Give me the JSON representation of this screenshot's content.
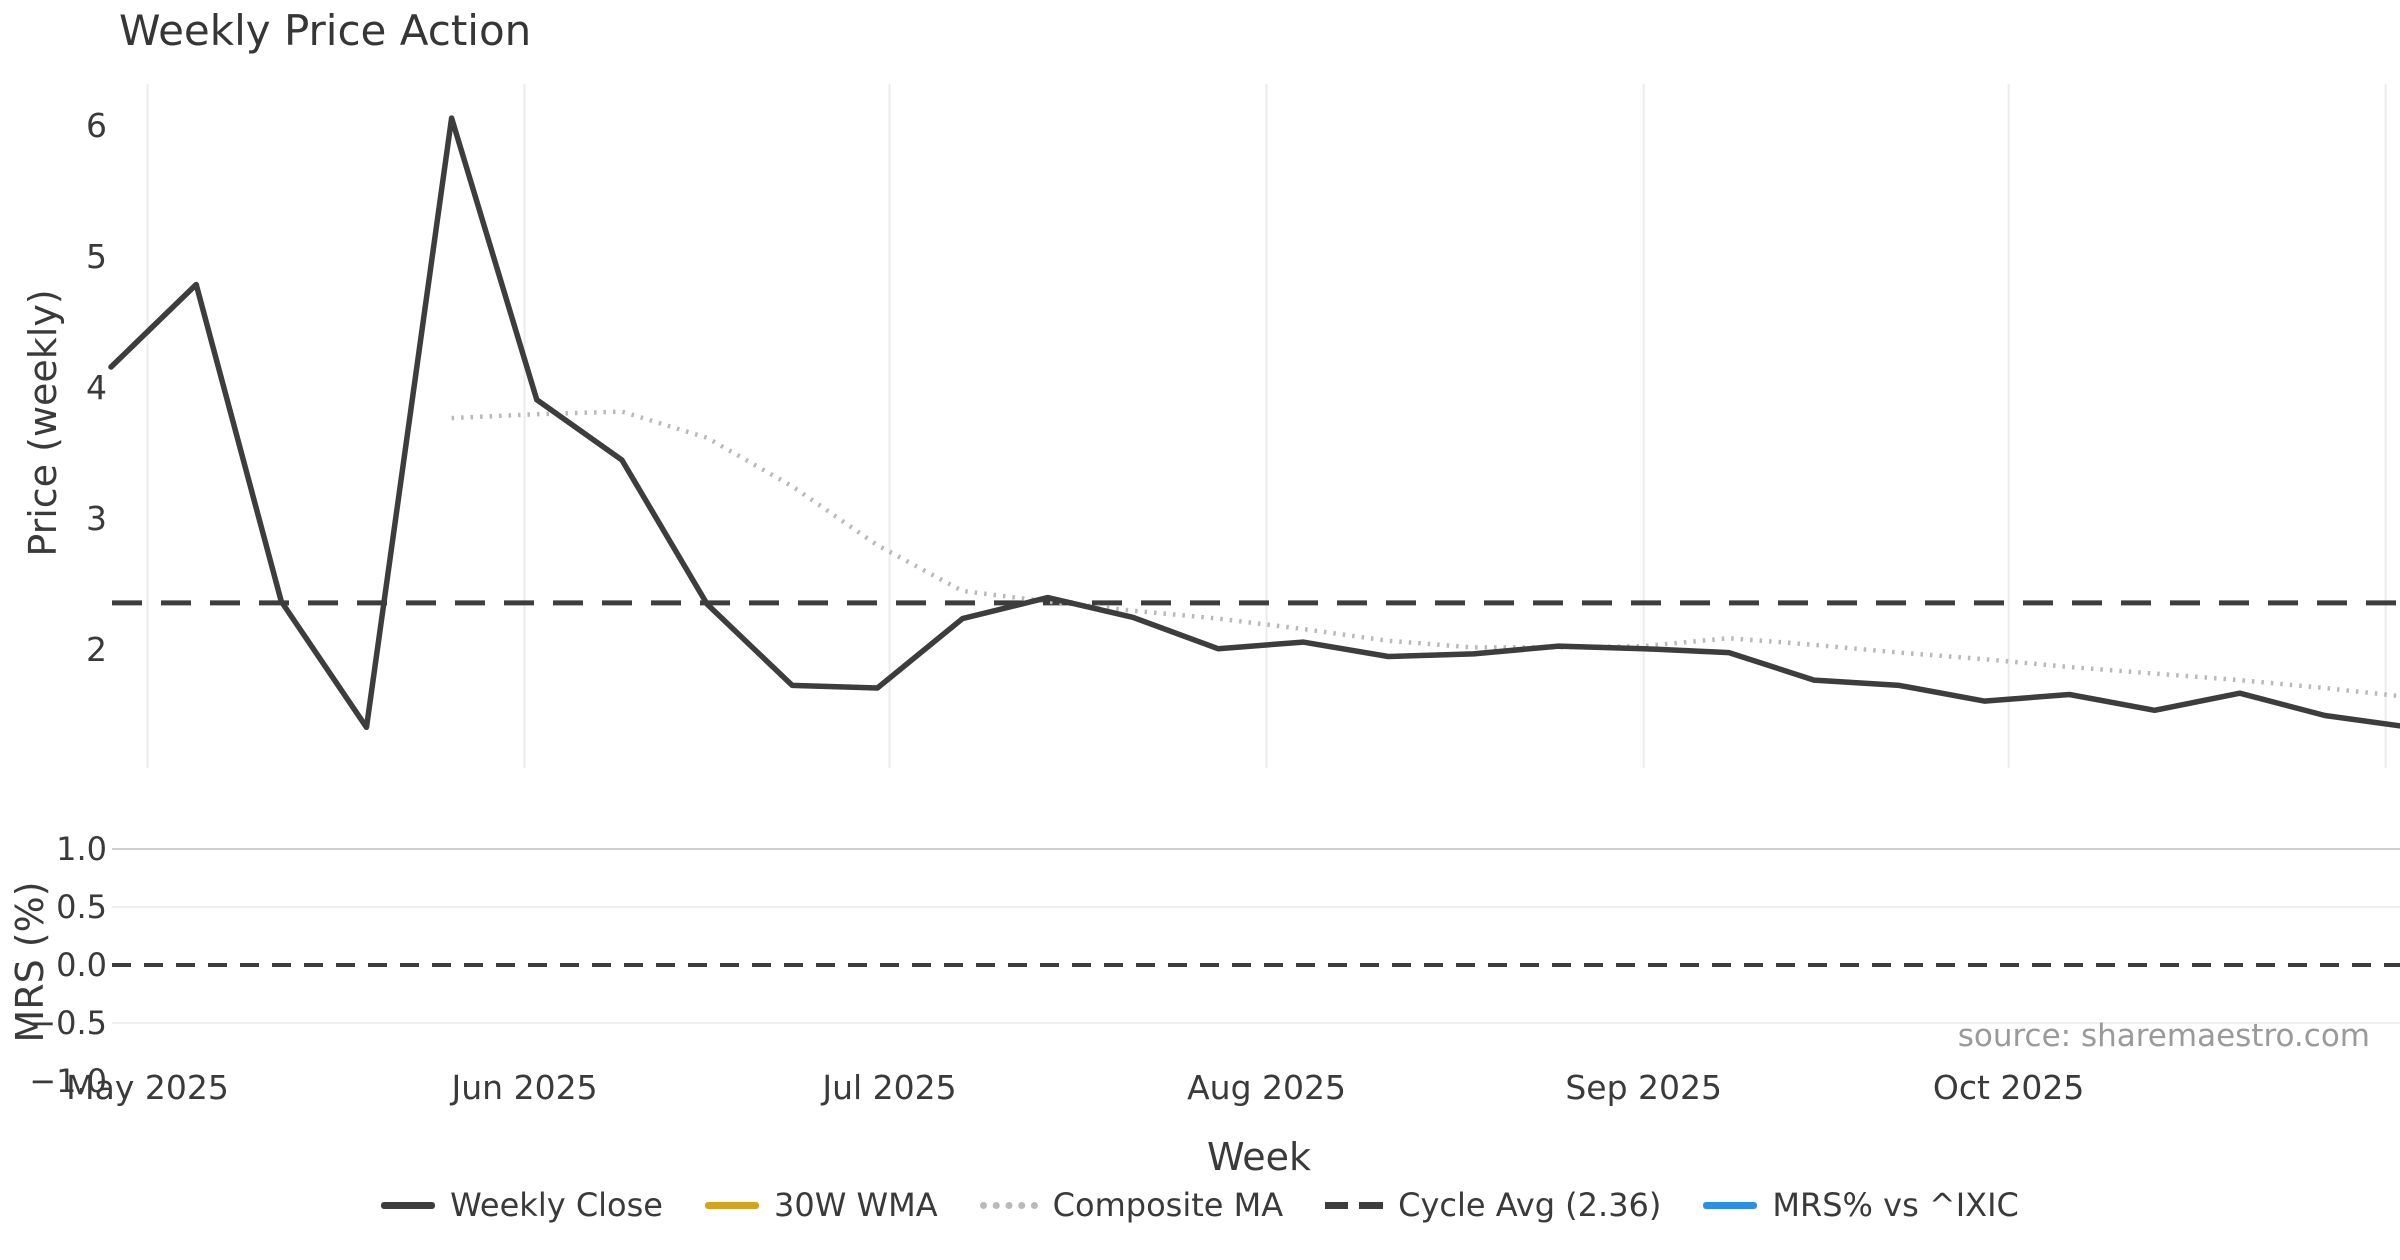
{
  "title": "Weekly Price Action",
  "xlabel": "Week",
  "source_note": "source: sharemaestro.com",
  "x_tick_labels": [
    "May 2025",
    "Jun 2025",
    "Jul 2025",
    "Aug 2025",
    "Sep 2025",
    "Oct 2025"
  ],
  "price_panel": {
    "ylabel": "Price (weekly)",
    "ytick_labels": [
      "6",
      "5",
      "4",
      "3",
      "2"
    ],
    "ytick_values": [
      6,
      5,
      4,
      3,
      2
    ]
  },
  "mrs_panel": {
    "ylabel": "MRS (%)",
    "ytick_labels": [
      "1.0",
      "0.5",
      "0.0",
      "−0.5",
      "−1.0"
    ],
    "ytick_values": [
      1.0,
      0.5,
      0.0,
      -0.5,
      -1.0
    ]
  },
  "colors": {
    "line_dark": "#3d3d3d",
    "composite_gray": "#b9b9b9",
    "wma_gold": "#d2a41f",
    "mrs_blue": "#2b8fe8",
    "grid_light": "#ececec",
    "grid_medium": "#cfcfcf",
    "text_dark": "#3a3a3a",
    "source_gray": "#9a9a9a"
  },
  "legend": [
    {
      "label": "Weekly Close",
      "color": "#3d3d3d",
      "style": "solid"
    },
    {
      "label": "30W WMA",
      "color": "#d2a41f",
      "style": "solid"
    },
    {
      "label": "Composite MA",
      "color": "#b9b9b9",
      "style": "dotted"
    },
    {
      "label": "Cycle Avg (2.36)",
      "color": "#3d3d3d",
      "style": "dashed"
    },
    {
      "label": "MRS% vs ^IXIC",
      "color": "#2b8fe8",
      "style": "solid"
    }
  ],
  "chart_data": [
    {
      "type": "line",
      "panel": "price",
      "title": "Weekly Price Action",
      "xlabel": "Week",
      "ylabel": "Price (weekly)",
      "x_unit": "weekly points, late Apr 2025 through early Nov 2025",
      "x_tick_labels": [
        "May 2025",
        "Jun 2025",
        "Jul 2025",
        "Aug 2025",
        "Sep 2025",
        "Oct 2025"
      ],
      "ylim": [
        1.2,
        6.3
      ],
      "yticks": [
        2,
        3,
        4,
        5,
        6
      ],
      "grid": "vertical month gridlines only",
      "legend_position": "bottom center",
      "series": [
        {
          "name": "Weekly Close",
          "type": "line",
          "style": "solid",
          "color": "#3d3d3d",
          "start_week": 0,
          "values": [
            4.16,
            4.79,
            2.37,
            1.41,
            6.06,
            3.91,
            3.45,
            2.35,
            1.73,
            1.71,
            2.24,
            2.4,
            2.25,
            2.01,
            2.06,
            1.95,
            1.97,
            2.03,
            2.01,
            1.98,
            1.77,
            1.73,
            1.61,
            1.66,
            1.54,
            1.67,
            1.5,
            1.41
          ]
        },
        {
          "name": "30W WMA",
          "type": "line",
          "style": "solid",
          "color": "#d2a41f",
          "start_week": 0,
          "values": [],
          "visible_in_plot": false
        },
        {
          "name": "Composite MA",
          "type": "line",
          "style": "dotted",
          "color": "#b9b9b9",
          "start_week": 4,
          "values": [
            3.77,
            3.8,
            3.82,
            3.62,
            3.25,
            2.8,
            2.45,
            2.37,
            2.3,
            2.24,
            2.16,
            2.07,
            2.02,
            2.02,
            2.03,
            2.09,
            2.04,
            1.98,
            1.93,
            1.87,
            1.82,
            1.77,
            1.71,
            1.64
          ]
        },
        {
          "name": "Cycle Avg (2.36)",
          "type": "hline",
          "style": "dashed",
          "color": "#3d3d3d",
          "value": 2.36
        }
      ]
    },
    {
      "type": "line",
      "panel": "mrs",
      "ylabel": "MRS (%)",
      "ylim": [
        -1.0,
        1.0
      ],
      "yticks": [
        -1.0,
        -0.5,
        0.0,
        0.5,
        1.0
      ],
      "grid": "horizontal gridlines at 1.0, 0.5, -0.5",
      "series": [
        {
          "name": "MRS% vs ^IXIC",
          "type": "line",
          "style": "solid",
          "color": "#2b8fe8",
          "values": [],
          "visible_in_plot": false
        },
        {
          "name": "zero line",
          "type": "hline",
          "style": "dashed",
          "color": "#3d3d3d",
          "value": 0.0
        }
      ]
    }
  ]
}
